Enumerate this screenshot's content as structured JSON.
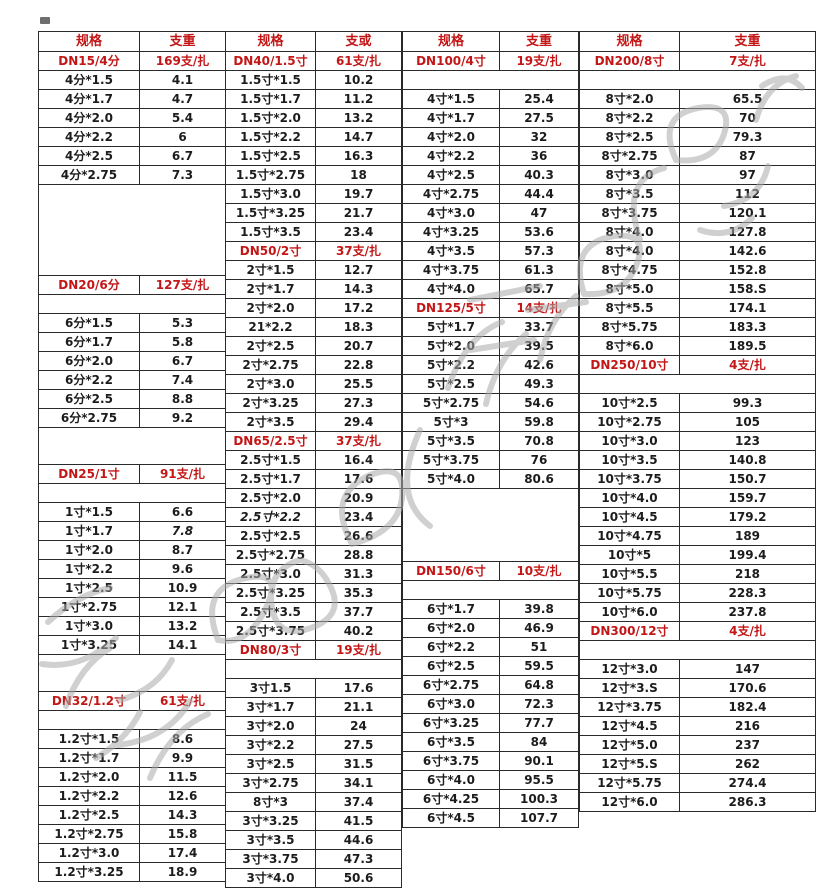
{
  "page": {
    "background": "#ffffff",
    "accent_red": "#c31616",
    "text_black": "#1c1c1c",
    "grid_line": "#2a2a2a",
    "watermark_gray": "#ababab"
  },
  "table": {
    "pairs": [
      {
        "id": "dn15-dn32",
        "headers": [
          "规格",
          "支重"
        ],
        "rows": [
          [
            "s",
            "DN15/4分",
            "169支/扎"
          ],
          [
            "d",
            "4分*1.5",
            "4.1"
          ],
          [
            "d",
            "4分*1.7",
            "4.7"
          ],
          [
            "d",
            "4分*2.0",
            "5.4"
          ],
          [
            "d",
            "4分*2.2",
            "6"
          ],
          [
            "d",
            "4分*2.5",
            "6.7"
          ],
          [
            "d",
            "4分*2.75",
            "7.3"
          ],
          [
            "g",
            5
          ],
          [
            "s",
            "DN20/6分",
            "127支/扎"
          ],
          [
            "g",
            1
          ],
          [
            "d",
            "6分*1.5",
            "5.3"
          ],
          [
            "d",
            "6分*1.7",
            "5.8"
          ],
          [
            "d",
            "6分*2.0",
            "6.7"
          ],
          [
            "d",
            "6分*2.2",
            "7.4"
          ],
          [
            "d",
            "6分*2.5",
            "8.8"
          ],
          [
            "d",
            "6分*2.75",
            "9.2"
          ],
          [
            "g",
            2
          ],
          [
            "s",
            "DN25/1寸",
            "91支/扎"
          ],
          [
            "g",
            1
          ],
          [
            "d",
            "1寸*1.5",
            "6.6"
          ],
          [
            "d",
            "1寸*1.7",
            "7.8",
            "iw"
          ],
          [
            "d",
            "1寸*2.0",
            "8.7"
          ],
          [
            "d",
            "1寸*2.2",
            "9.6"
          ],
          [
            "d",
            "1寸*2.5",
            "10.9"
          ],
          [
            "d",
            "1寸*2.75",
            "12.1"
          ],
          [
            "d",
            "1寸*3.0",
            "13.2"
          ],
          [
            "d",
            "1寸*3.25",
            "14.1"
          ],
          [
            "g",
            2
          ],
          [
            "s",
            "DN32/1.2寸",
            "61支/扎"
          ],
          [
            "g",
            1
          ],
          [
            "d",
            "1.2寸*1.5",
            "8.6"
          ],
          [
            "d",
            "1.2寸*1.7",
            "9.9"
          ],
          [
            "d",
            "1.2寸*2.0",
            "11.5"
          ],
          [
            "d",
            "1.2寸*2.2",
            "12.6"
          ],
          [
            "d",
            "1.2寸*2.5",
            "14.3"
          ],
          [
            "d",
            "1.2寸*2.75",
            "15.8"
          ],
          [
            "d",
            "1.2寸*3.0",
            "17.4"
          ],
          [
            "d",
            "1.2寸*3.25",
            "18.9"
          ]
        ]
      },
      {
        "id": "dn40-dn80",
        "headers": [
          "规格",
          "支或"
        ],
        "rows": [
          [
            "s",
            "DN40/1.5寸",
            "61支/扎"
          ],
          [
            "d",
            "1.5寸*1.5",
            "10.2"
          ],
          [
            "d",
            "1.5寸*1.7",
            "11.2"
          ],
          [
            "d",
            "1.5寸*2.0",
            "13.2"
          ],
          [
            "d",
            "1.5寸*2.2",
            "14.7"
          ],
          [
            "d",
            "1.5寸*2.5",
            "16.3"
          ],
          [
            "d",
            "1.5寸*2.75",
            "18"
          ],
          [
            "d",
            "1.5寸*3.0",
            "19.7"
          ],
          [
            "d",
            "1.5寸*3.25",
            "21.7"
          ],
          [
            "d",
            "1.5寸*3.5",
            "23.4"
          ],
          [
            "s",
            "DN50/2寸",
            "37支/扎"
          ],
          [
            "d",
            "2寸*1.5",
            "12.7"
          ],
          [
            "d",
            "2寸*1.7",
            "14.3"
          ],
          [
            "d",
            "2寸*2.0",
            "17.2"
          ],
          [
            "d",
            "21*2.2",
            "18.3"
          ],
          [
            "d",
            "2寸*2.5",
            "20.7"
          ],
          [
            "d",
            "2寸*2.75",
            "22.8"
          ],
          [
            "d",
            "2寸*3.0",
            "25.5"
          ],
          [
            "d",
            "2寸*3.25",
            "27.3"
          ],
          [
            "d",
            "2寸*3.5",
            "29.4"
          ],
          [
            "s",
            "DN65/2.5寸",
            "37支/扎"
          ],
          [
            "d",
            "2.5寸*1.5",
            "16.4"
          ],
          [
            "d",
            "2.5寸*1.7",
            "17.6"
          ],
          [
            "d",
            "2.5寸*2.0",
            "20.9"
          ],
          [
            "d",
            "2.5寸*2.2",
            "23.4",
            "is"
          ],
          [
            "d",
            "2.5寸*2.5",
            "26.6"
          ],
          [
            "d",
            "2.5寸*2.75",
            "28.8"
          ],
          [
            "d",
            "2.5寸*3.0",
            "31.3"
          ],
          [
            "d",
            "2.5寸*3.25",
            "35.3"
          ],
          [
            "d",
            "2.5寸*3.5",
            "37.7"
          ],
          [
            "d",
            "2.5寸*3.75",
            "40.2"
          ],
          [
            "s",
            "DN80/3寸",
            "19支/扎"
          ],
          [
            "g",
            1
          ],
          [
            "d",
            "3寸1.5",
            "17.6"
          ],
          [
            "d",
            "3寸*1.7",
            "21.1"
          ],
          [
            "d",
            "3寸*2.0",
            "24"
          ],
          [
            "d",
            "3寸*2.2",
            "27.5"
          ],
          [
            "d",
            "3寸*2.5",
            "31.5"
          ],
          [
            "d",
            "3寸*2.75",
            "34.1"
          ],
          [
            "d",
            "8寸*3",
            "37.4"
          ],
          [
            "d",
            "3寸*3.25",
            "41.5"
          ],
          [
            "d",
            "3寸*3.5",
            "44.6"
          ],
          [
            "d",
            "3寸*3.75",
            "47.3"
          ],
          [
            "d",
            "3寸*4.0",
            "50.6"
          ]
        ]
      },
      {
        "id": "dn100-dn150",
        "headers": [
          "规格",
          "支重"
        ],
        "rows": [
          [
            "s",
            "DN100/4寸",
            "19支/扎"
          ],
          [
            "g",
            1
          ],
          [
            "d",
            "4寸*1.5",
            "25.4"
          ],
          [
            "d",
            "4寸*1.7",
            "27.5"
          ],
          [
            "d",
            "4寸*2.0",
            "32"
          ],
          [
            "d",
            "4寸*2.2",
            "36"
          ],
          [
            "d",
            "4寸*2.5",
            "40.3"
          ],
          [
            "d",
            "4寸*2.75",
            "44.4"
          ],
          [
            "d",
            "4寸*3.0",
            "47"
          ],
          [
            "d",
            "4寸*3.25",
            "53.6"
          ],
          [
            "d",
            "4寸*3.5",
            "57.3"
          ],
          [
            "d",
            "4寸*3.75",
            "61.3"
          ],
          [
            "d",
            "4寸*4.0",
            "65.7"
          ],
          [
            "s",
            "DN125/5寸",
            "14支/扎"
          ],
          [
            "d",
            "5寸*1.7",
            "33.7"
          ],
          [
            "d",
            "5寸*2.0",
            "39.5"
          ],
          [
            "d",
            "5寸*2.2",
            "42.6"
          ],
          [
            "d",
            "5寸*2.5",
            "49.3"
          ],
          [
            "d",
            "5寸*2.75",
            "54.6"
          ],
          [
            "d",
            "5寸*3",
            "59.8"
          ],
          [
            "d",
            "5寸*3.5",
            "70.8"
          ],
          [
            "d",
            "5寸*3.75",
            "76"
          ],
          [
            "d",
            "5寸*4.0",
            "80.6"
          ],
          [
            "g",
            4
          ],
          [
            "s",
            "DN150/6寸",
            "10支/扎"
          ],
          [
            "g",
            1
          ],
          [
            "d",
            "6寸*1.7",
            "39.8"
          ],
          [
            "d",
            "6寸*2.0",
            "46.9"
          ],
          [
            "d",
            "6寸*2.2",
            "51"
          ],
          [
            "d",
            "6寸*2.5",
            "59.5"
          ],
          [
            "d",
            "6寸*2.75",
            "64.8"
          ],
          [
            "d",
            "6寸*3.0",
            "72.3"
          ],
          [
            "d",
            "6寸*3.25",
            "77.7"
          ],
          [
            "d",
            "6寸*3.5",
            "84"
          ],
          [
            "d",
            "6寸*3.75",
            "90.1"
          ],
          [
            "d",
            "6寸*4.0",
            "95.5"
          ],
          [
            "d",
            "6寸*4.25",
            "100.3"
          ],
          [
            "d",
            "6寸*4.5",
            "107.7"
          ]
        ]
      },
      {
        "id": "dn200-dn300",
        "headers": [
          "规格",
          "支重"
        ],
        "rows": [
          [
            "s",
            "DN200/8寸",
            "7支/扎"
          ],
          [
            "g",
            1
          ],
          [
            "d",
            "8寸*2.0",
            "65.5"
          ],
          [
            "d",
            "8寸*2.2",
            "70"
          ],
          [
            "d",
            "8寸*2.5",
            "79.3"
          ],
          [
            "d",
            "8寸*2.75",
            "87"
          ],
          [
            "d",
            "8寸*3.0",
            "97"
          ],
          [
            "d",
            "8寸*3.5",
            "112"
          ],
          [
            "d",
            "8寸*3.75",
            "120.1"
          ],
          [
            "d",
            "8寸*4.0",
            "127.8"
          ],
          [
            "d",
            "8寸*4.0",
            "142.6"
          ],
          [
            "d",
            "8寸*4.75",
            "152.8"
          ],
          [
            "d",
            "8寸*5.0",
            "158.S"
          ],
          [
            "d",
            "8寸*5.5",
            "174.1"
          ],
          [
            "d",
            "8寸*5.75",
            "183.3"
          ],
          [
            "d",
            "8寸*6.0",
            "189.5"
          ],
          [
            "s",
            "DN250/10寸",
            "4支/扎"
          ],
          [
            "g",
            1
          ],
          [
            "d",
            "10寸*2.5",
            "99.3"
          ],
          [
            "d",
            "10寸*2.75",
            "105"
          ],
          [
            "d",
            "10寸*3.0",
            "123"
          ],
          [
            "d",
            "10寸*3.5",
            "140.8"
          ],
          [
            "d",
            "10寸*3.75",
            "150.7"
          ],
          [
            "d",
            "10寸*4.0",
            "159.7"
          ],
          [
            "d",
            "10寸*4.5",
            "179.2"
          ],
          [
            "d",
            "10寸*4.75",
            "189"
          ],
          [
            "d",
            "10寸*5",
            "199.4"
          ],
          [
            "d",
            "10寸*5.5",
            "218"
          ],
          [
            "d",
            "10寸*5.75",
            "228.3"
          ],
          [
            "d",
            "10寸*6.0",
            "237.8"
          ],
          [
            "s",
            "DN300/12寸",
            "4支/扎"
          ],
          [
            "g",
            1
          ],
          [
            "d",
            "12寸*3.0",
            "147"
          ],
          [
            "d",
            "12寸*3.S",
            "170.6"
          ],
          [
            "d",
            "12寸*3.75",
            "182.4"
          ],
          [
            "d",
            "12寸*4.5",
            "216"
          ],
          [
            "d",
            "12寸*5.0",
            "237"
          ],
          [
            "d",
            "12寸*5.S",
            "262"
          ],
          [
            "d",
            "12寸*5.75",
            "274.4"
          ],
          [
            "d",
            "12寸*6.0",
            "286.3"
          ]
        ]
      }
    ]
  }
}
